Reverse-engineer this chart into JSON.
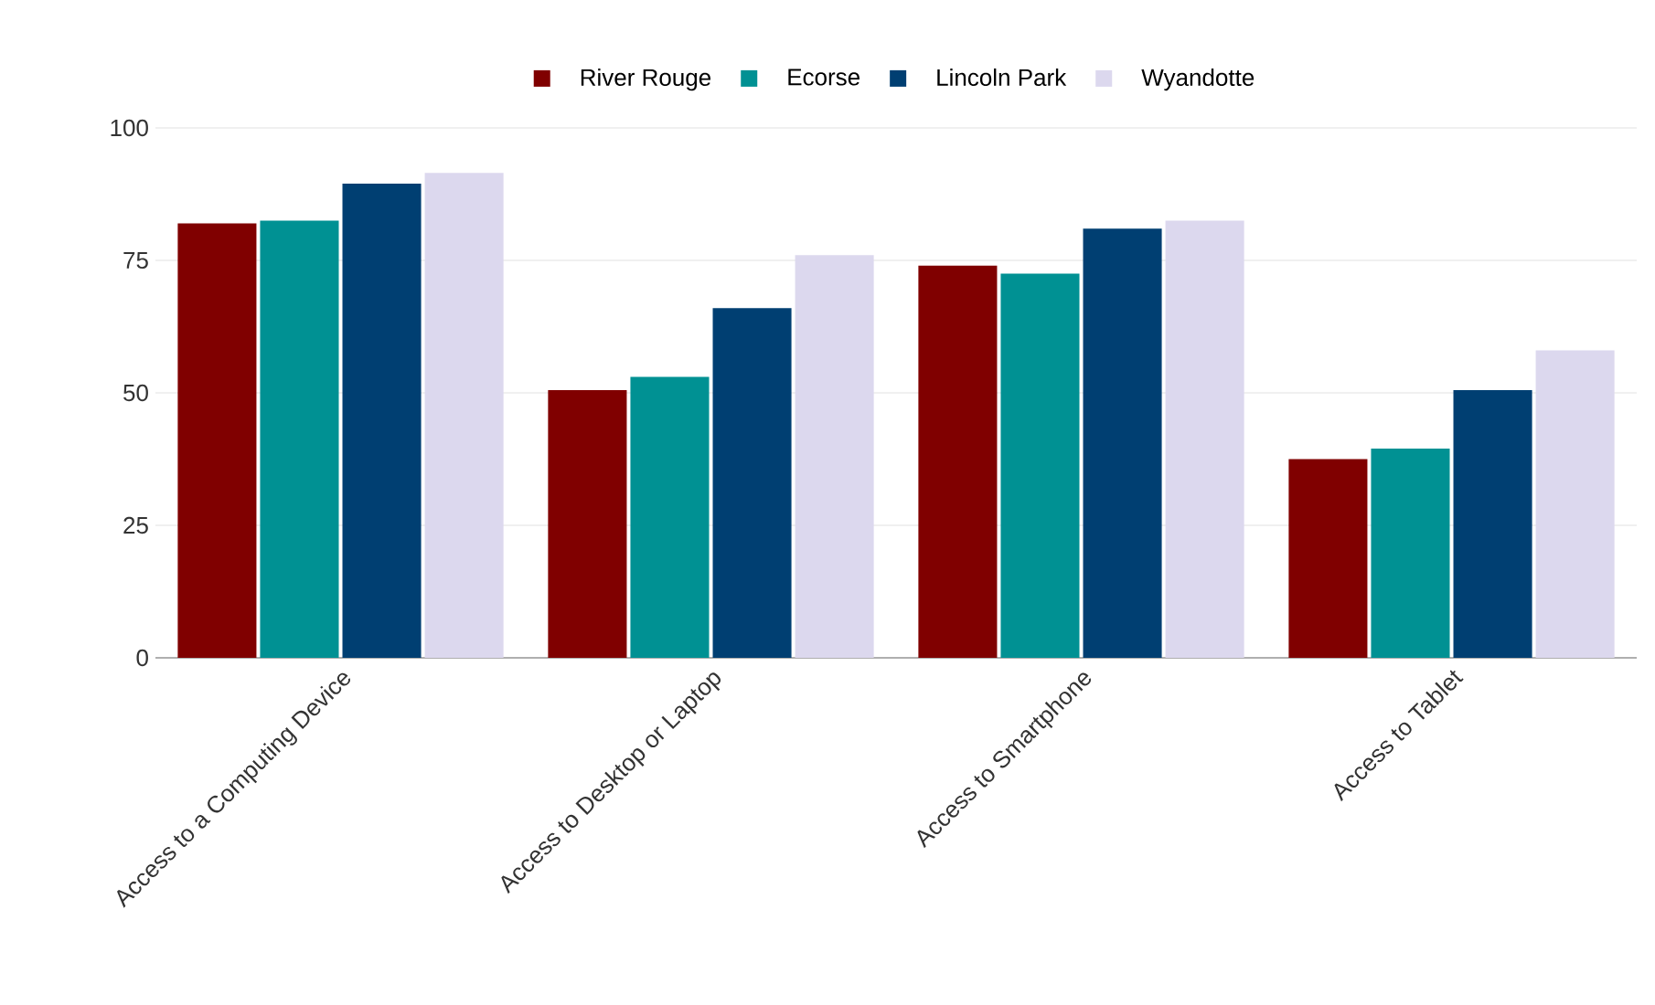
{
  "chart_data": {
    "type": "bar",
    "categories": [
      "Access to a Computing Device",
      "Access to Desktop or Laptop",
      "Access to Smartphone",
      "Access to Tablet"
    ],
    "series": [
      {
        "name": "River Rouge",
        "color": "#800000",
        "values": [
          82,
          50.5,
          74,
          37.5
        ]
      },
      {
        "name": "Ecorse",
        "color": "#009193",
        "values": [
          82.5,
          53,
          72.5,
          39.5
        ]
      },
      {
        "name": "Lincoln Park",
        "color": "#003f72",
        "values": [
          89.5,
          66,
          81,
          50.5
        ]
      },
      {
        "name": "Wyandotte",
        "color": "#dcd8ee",
        "values": [
          91.5,
          76,
          82.5,
          58
        ]
      }
    ],
    "ylim": [
      0,
      100
    ],
    "yticks": [
      0,
      25,
      50,
      75,
      100
    ],
    "grid": "y",
    "legend": "top"
  }
}
